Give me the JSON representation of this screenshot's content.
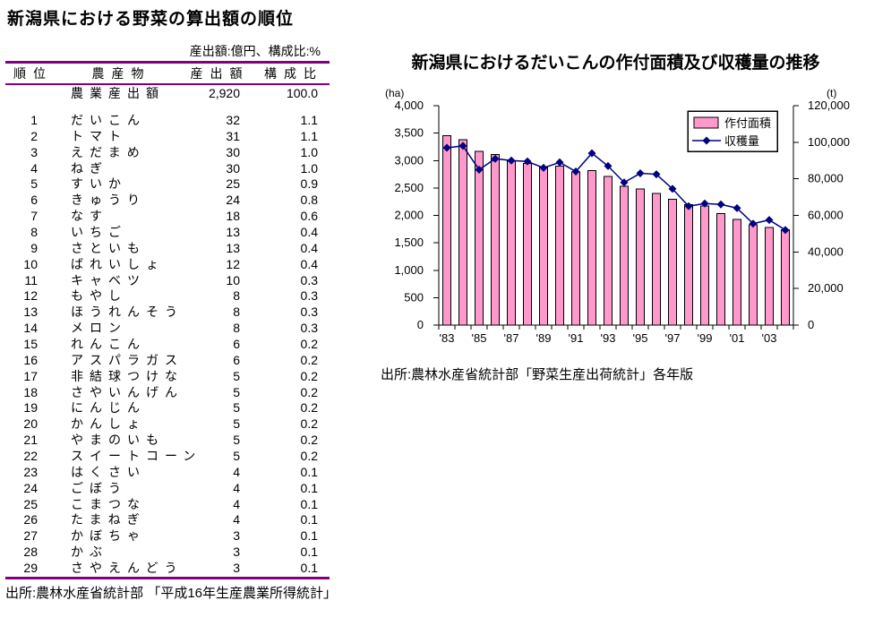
{
  "ranking_table": {
    "title": "新潟県における野菜の算出額の順位",
    "units_note": "産出額:億円、構成比:%",
    "columns": {
      "rank": "順位",
      "product": "農産物",
      "output": "産出額",
      "share": "構成比"
    },
    "total_row": {
      "rank": "",
      "product": "農業産出額",
      "output": "2,920",
      "share": "100.0"
    },
    "rows": [
      {
        "rank": "1",
        "product": "だいこん",
        "output": "32",
        "share": "1.1"
      },
      {
        "rank": "2",
        "product": "トマト",
        "output": "31",
        "share": "1.1"
      },
      {
        "rank": "3",
        "product": "えだまめ",
        "output": "30",
        "share": "1.0"
      },
      {
        "rank": "4",
        "product": "ねぎ",
        "output": "30",
        "share": "1.0"
      },
      {
        "rank": "5",
        "product": "すいか",
        "output": "25",
        "share": "0.9"
      },
      {
        "rank": "6",
        "product": "きゅうり",
        "output": "24",
        "share": "0.8"
      },
      {
        "rank": "7",
        "product": "なす",
        "output": "18",
        "share": "0.6"
      },
      {
        "rank": "8",
        "product": "いちご",
        "output": "13",
        "share": "0.4"
      },
      {
        "rank": "9",
        "product": "さといも",
        "output": "13",
        "share": "0.4"
      },
      {
        "rank": "10",
        "product": "ばれいしょ",
        "output": "12",
        "share": "0.4"
      },
      {
        "rank": "11",
        "product": "キャベツ",
        "output": "10",
        "share": "0.3"
      },
      {
        "rank": "12",
        "product": "もやし",
        "output": "8",
        "share": "0.3"
      },
      {
        "rank": "13",
        "product": "ほうれんそう",
        "output": "8",
        "share": "0.3"
      },
      {
        "rank": "14",
        "product": "メロン",
        "output": "8",
        "share": "0.3"
      },
      {
        "rank": "15",
        "product": "れんこん",
        "output": "6",
        "share": "0.2"
      },
      {
        "rank": "16",
        "product": "アスパラガス",
        "output": "6",
        "share": "0.2"
      },
      {
        "rank": "17",
        "product": "非結球つけな",
        "output": "5",
        "share": "0.2"
      },
      {
        "rank": "18",
        "product": "さやいんげん",
        "output": "5",
        "share": "0.2"
      },
      {
        "rank": "19",
        "product": "にんじん",
        "output": "5",
        "share": "0.2"
      },
      {
        "rank": "20",
        "product": "かんしょ",
        "output": "5",
        "share": "0.2"
      },
      {
        "rank": "21",
        "product": "やまのいも",
        "output": "5",
        "share": "0.2"
      },
      {
        "rank": "22",
        "product": "スイートコーン",
        "output": "5",
        "share": "0.2"
      },
      {
        "rank": "23",
        "product": "はくさい",
        "output": "4",
        "share": "0.1"
      },
      {
        "rank": "24",
        "product": "ごぼう",
        "output": "4",
        "share": "0.1"
      },
      {
        "rank": "25",
        "product": "こまつな",
        "output": "4",
        "share": "0.1"
      },
      {
        "rank": "26",
        "product": "たまねぎ",
        "output": "4",
        "share": "0.1"
      },
      {
        "rank": "27",
        "product": "かぼちゃ",
        "output": "3",
        "share": "0.1"
      },
      {
        "rank": "28",
        "product": "かぶ",
        "output": "3",
        "share": "0.1"
      },
      {
        "rank": "29",
        "product": "さやえんどう",
        "output": "3",
        "share": "0.1"
      }
    ],
    "source": "出所:農林水産省統計部 「平成16年生産農業所得統計」",
    "rule_color": "#800080"
  },
  "chart": {
    "title": "新潟県におけるだいこんの作付面積及び収穫量の推移",
    "source": "出所:農林水産省統計部「野菜生産出荷統計」各年版",
    "colors": {
      "bar_fill": "#FF99CC",
      "bar_stroke": "#000000",
      "line_color": "#000080",
      "axis_color": "#000000",
      "legend_border": "#000000",
      "plot_bg": "#FFFFFF"
    }
  },
  "chart_data": {
    "type": "combo-bar-line",
    "x": [
      1983,
      1984,
      1985,
      1986,
      1987,
      1988,
      1989,
      1990,
      1991,
      1992,
      1993,
      1994,
      1995,
      1996,
      1997,
      1998,
      1999,
      2000,
      2001,
      2002,
      2003,
      2004
    ],
    "x_tick_labels": [
      "'83",
      "'85",
      "'87",
      "'89",
      "'91",
      "'93",
      "'95",
      "'97",
      "'99",
      "'01",
      "'03"
    ],
    "series": [
      {
        "name": "作付面積",
        "type": "bar",
        "axis": "left",
        "unit": "ha",
        "values": [
          3450,
          3380,
          3170,
          3110,
          2990,
          2950,
          2880,
          2900,
          2790,
          2820,
          2710,
          2530,
          2480,
          2400,
          2290,
          2200,
          2170,
          2030,
          1930,
          1830,
          1780,
          1740
        ]
      },
      {
        "name": "収穫量",
        "type": "line",
        "axis": "right",
        "unit": "t",
        "values": [
          97000,
          98000,
          85000,
          91000,
          90000,
          89500,
          86000,
          89000,
          84000,
          94000,
          87000,
          78000,
          83000,
          82500,
          74500,
          65000,
          66500,
          66000,
          64000,
          55500,
          57500,
          52000
        ]
      }
    ],
    "left_axis": {
      "unit": "(ha)",
      "min": 0,
      "max": 4000,
      "step": 500,
      "ticks": [
        "0",
        "500",
        "1,000",
        "1,500",
        "2,000",
        "2,500",
        "3,000",
        "3,500",
        "4,000"
      ]
    },
    "right_axis": {
      "unit": "(t)",
      "min": 0,
      "max": 120000,
      "step": 20000,
      "ticks": [
        "0",
        "20,000",
        "40,000",
        "60,000",
        "80,000",
        "100,000",
        "120,000"
      ]
    },
    "grid": false,
    "legend_position": "top-right-inside"
  }
}
